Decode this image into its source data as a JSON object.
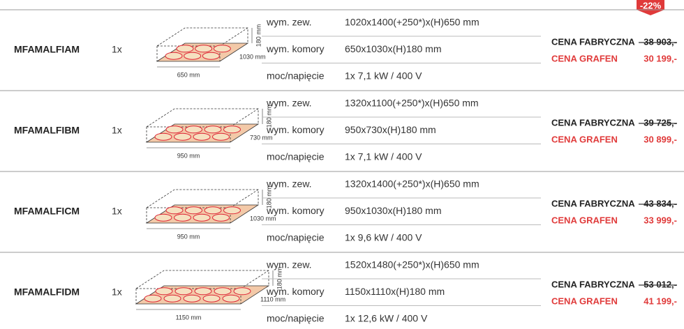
{
  "badge": "-22%",
  "rows": [
    {
      "model": "MFAMALFIAM",
      "qty": "1x",
      "dim_height": "180 mm",
      "dim_depth": "1030 mm",
      "dim_width": "650 mm",
      "specs": [
        {
          "label": "wym. zew.",
          "value": "1020x1400(+250*)x(H)650 mm"
        },
        {
          "label": "wym. komory",
          "value": "650x1030x(H)180 mm"
        },
        {
          "label": "moc/napięcie",
          "value": "1x 7,1 kW / 400 V"
        }
      ],
      "factory_label": "CENA FABRYCZNA",
      "factory_price": "38 903,-",
      "grafen_label": "CENA GRAFEN",
      "grafen_price": "30 199,-"
    },
    {
      "model": "MFAMALFIBM",
      "qty": "1x",
      "dim_height": "180 mm",
      "dim_depth": "730 mm",
      "dim_width": "950 mm",
      "specs": [
        {
          "label": "wym. zew.",
          "value": "1320x1100(+250*)x(H)650 mm"
        },
        {
          "label": "wym. komory",
          "value": "950x730x(H)180 mm"
        },
        {
          "label": "moc/napięcie",
          "value": "1x 7,1 kW / 400 V"
        }
      ],
      "factory_label": "CENA FABRYCZNA",
      "factory_price": "39 725,-",
      "grafen_label": "CENA GRAFEN",
      "grafen_price": "30 899,-"
    },
    {
      "model": "MFAMALFICM",
      "qty": "1x",
      "dim_height": "180 mm",
      "dim_depth": "1030 mm",
      "dim_width": "950 mm",
      "specs": [
        {
          "label": "wym. zew.",
          "value": "1320x1400(+250*)x(H)650 mm"
        },
        {
          "label": "wym. komory",
          "value": "950x1030x(H)180 mm"
        },
        {
          "label": "moc/napięcie",
          "value": "1x 9,6 kW / 400 V"
        }
      ],
      "factory_label": "CENA FABRYCZNA",
      "factory_price": "43 834,-",
      "grafen_label": "CENA GRAFEN",
      "grafen_price": "33 999,-"
    },
    {
      "model": "MFAMALFIDM",
      "qty": "1x",
      "dim_height": "180 mm",
      "dim_depth": "1110 mm",
      "dim_width": "1150 mm",
      "specs": [
        {
          "label": "wym. zew.",
          "value": "1520x1480(+250*)x(H)650 mm"
        },
        {
          "label": "wym. komory",
          "value": "1150x1110x(H)180 mm"
        },
        {
          "label": "moc/napięcie",
          "value": "1x 12,6 kW / 400 V"
        }
      ],
      "factory_label": "CENA FABRYCZNA",
      "factory_price": "53 012,-",
      "grafen_label": "CENA GRAFEN",
      "grafen_price": "41 199,-"
    }
  ]
}
